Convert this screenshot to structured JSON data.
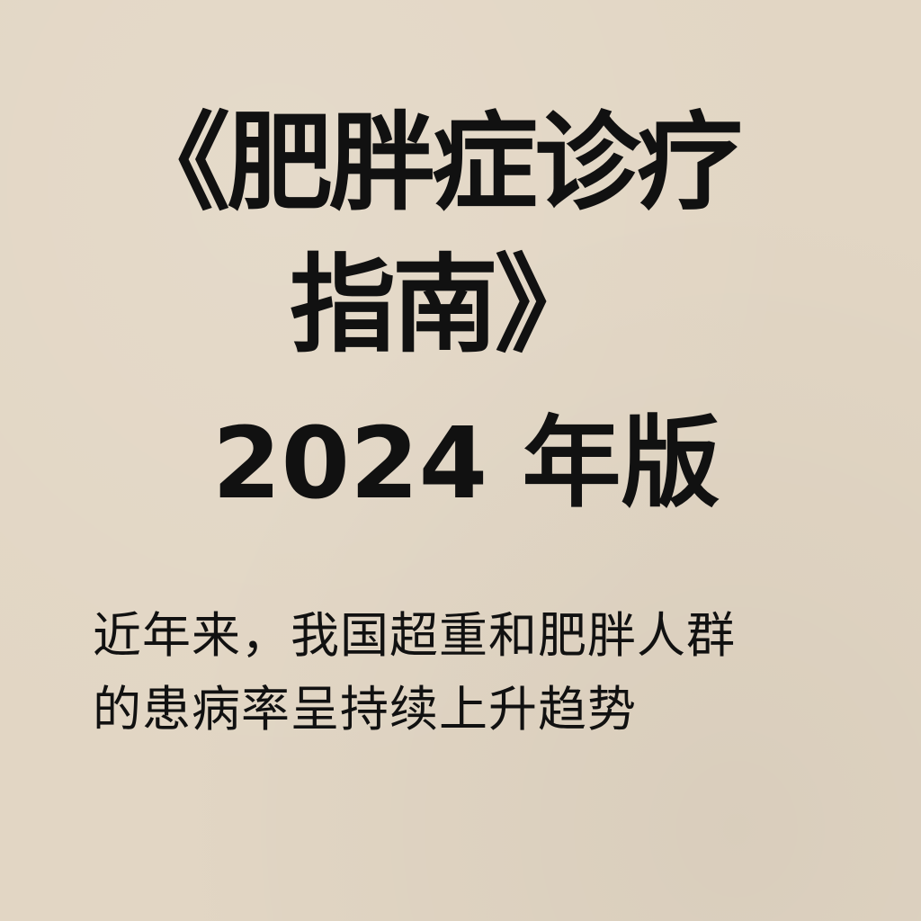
{
  "title": {
    "line1": "《肥胖症诊疗",
    "line2": "指南》"
  },
  "edition": "2024 年版",
  "subtitle": {
    "line1": "近年来，我国超重和肥胖人群",
    "line2": "的患病率呈持续上升趋势"
  },
  "colors": {
    "background": "#e2d6c4",
    "text": "#111111"
  }
}
